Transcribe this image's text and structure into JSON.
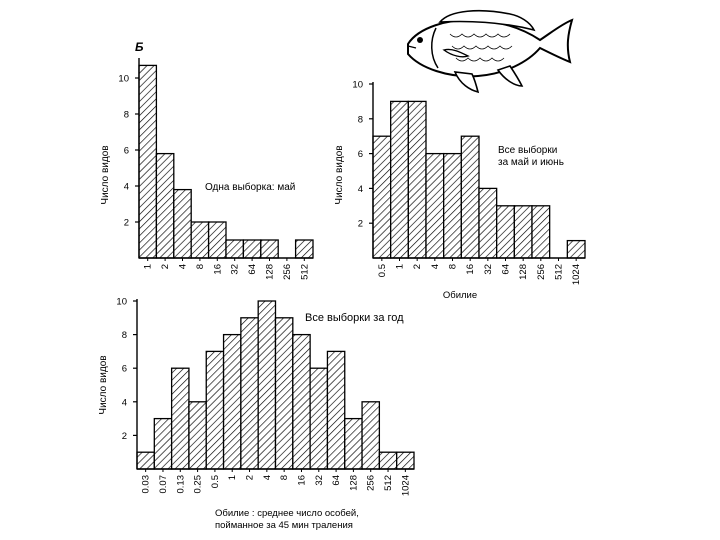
{
  "panel_letter": "Б",
  "chart_data": [
    {
      "type": "bar",
      "annotation": "Одна выборка: май",
      "ylabel": "Число видов",
      "xlabel": "",
      "categories": [
        "1",
        "2",
        "4",
        "8",
        "16",
        "32",
        "64",
        "128",
        "256",
        "512"
      ],
      "values": [
        10.7,
        5.8,
        3.8,
        2,
        2,
        1,
        1,
        1,
        0,
        1
      ],
      "ylim": [
        0,
        11
      ],
      "yticks": [
        "2",
        "4",
        "6",
        "8",
        "10"
      ],
      "hatch": true
    },
    {
      "type": "bar",
      "annotation": "Все выборки\nза май и июнь",
      "ylabel": "Число видов",
      "xlabel": "Обилие",
      "categories": [
        "0.5",
        "1",
        "2",
        "4",
        "8",
        "16",
        "32",
        "64",
        "128",
        "256",
        "512",
        "1024"
      ],
      "values": [
        7,
        9,
        9,
        6,
        6,
        7,
        4,
        3,
        3,
        3,
        0,
        1
      ],
      "ylim": [
        0,
        10
      ],
      "yticks": [
        "2",
        "4",
        "6",
        "8",
        "10"
      ],
      "hatch": true
    },
    {
      "type": "bar",
      "annotation": "Все выборки за год",
      "ylabel": "Число видов",
      "xlabel": "Обилие : среднее число особей,\nпойманное за 45 мин траления",
      "categories": [
        "0.03",
        "0.07",
        "0.13",
        "0.25",
        "0.5",
        "1",
        "2",
        "4",
        "8",
        "16",
        "32",
        "64",
        "128",
        "256",
        "512",
        "1024"
      ],
      "values": [
        1,
        3,
        6,
        4,
        7,
        8,
        9,
        10,
        9,
        8,
        6,
        7,
        3,
        4,
        1,
        1
      ],
      "ylim": [
        0,
        10
      ],
      "yticks": [
        "2",
        "4",
        "6",
        "8",
        "10"
      ],
      "hatch": true
    }
  ],
  "illustration": {
    "name": "fish-illustration"
  }
}
